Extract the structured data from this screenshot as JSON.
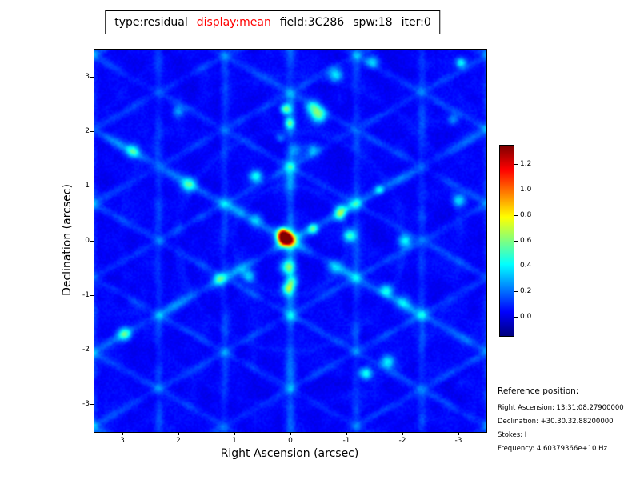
{
  "title": {
    "parts": [
      {
        "text": "type:residual",
        "color": "#000000"
      },
      {
        "text": "display:mean",
        "color": "#ff0000"
      },
      {
        "text": "field:3C286",
        "color": "#000000"
      },
      {
        "text": "spw:18",
        "color": "#000000"
      },
      {
        "text": "iter:0",
        "color": "#000000"
      }
    ]
  },
  "axes": {
    "xlabel": "Right Ascension (arcsec)",
    "ylabel": "Declination (arcsec)",
    "xticks": [
      3,
      2,
      1,
      0,
      -1,
      -2,
      -3
    ],
    "yticks": [
      3,
      2,
      1,
      0,
      -1,
      -2,
      -3
    ]
  },
  "colorbar": {
    "ticks": [
      1.2,
      1.0,
      0.8,
      0.6,
      0.4,
      0.2,
      0.0
    ]
  },
  "reference": {
    "heading": "Reference position:",
    "lines": [
      "Right Ascension: 13:31:08.27900000",
      "Declination: +30.30.32.88200000",
      "Stokes: I",
      "Frequency: 4.60379366e+10 Hz"
    ]
  },
  "chart_data": {
    "type": "heatmap",
    "title": "type:residual display:mean field:3C286 spw:18 iter:0",
    "xlabel": "Right Ascension (arcsec)",
    "ylabel": "Declination (arcsec)",
    "xlim": [
      3.5,
      -3.5
    ],
    "ylim": [
      -3.5,
      3.5
    ],
    "x_ticks": [
      3,
      2,
      1,
      0,
      -1,
      -2,
      -3
    ],
    "y_ticks": [
      -3,
      -2,
      -1,
      0,
      1,
      2,
      3
    ],
    "colormap": "jet",
    "value_range": [
      -0.15,
      1.35
    ],
    "colorbar_ticks": [
      0.0,
      0.2,
      0.4,
      0.6,
      0.8,
      1.0,
      1.2
    ],
    "peak": {
      "ra_arcsec": 0.1,
      "dec_arcsec": 0.05,
      "value": 1.3
    },
    "background_level": 0.0,
    "sidelobe_level": 0.3,
    "description": "Interferometric residual map: faint blue hexagonal sidelobe web and six-fold ray pattern radiating from a single bright compact source near the field center"
  }
}
